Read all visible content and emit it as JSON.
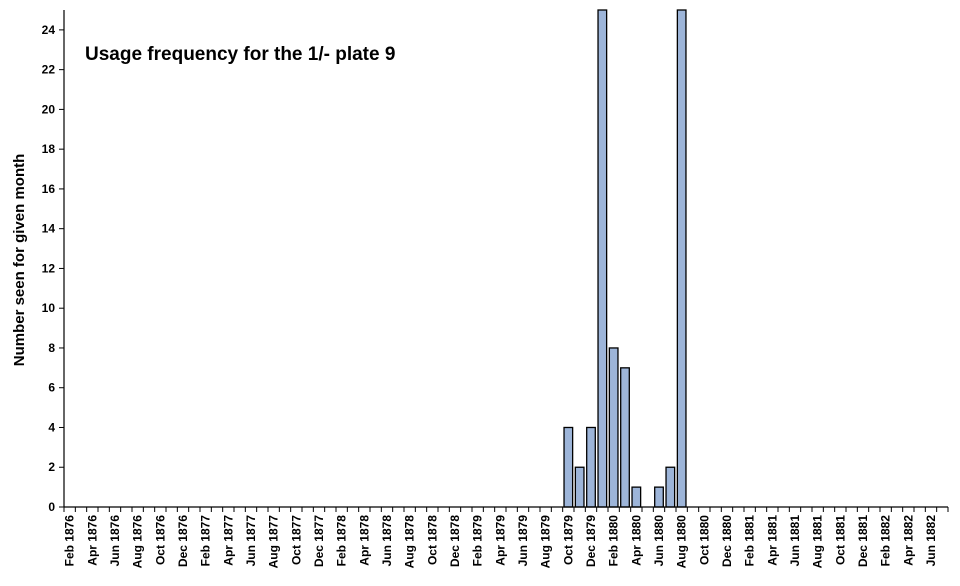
{
  "chart_data": {
    "type": "bar",
    "title": "Usage frequency for the 1/- plate 9",
    "xlabel": "",
    "ylabel": "Number seen for given month",
    "ylim": [
      0,
      25
    ],
    "yticks": [
      0,
      2,
      4,
      6,
      8,
      10,
      12,
      14,
      16,
      18,
      20,
      22,
      24
    ],
    "grid": false,
    "legend": "none",
    "bar_color": "#9db5d9",
    "x_tick_labels": [
      "Feb 1876",
      "Apr 1876",
      "Jun 1876",
      "Aug 1876",
      "Oct 1876",
      "Dec 1876",
      "Feb 1877",
      "Apr 1877",
      "Jun 1877",
      "Aug 1877",
      "Oct 1877",
      "Dec 1877",
      "Feb 1878",
      "Apr 1878",
      "Jun 1878",
      "Aug 1878",
      "Oct 1878",
      "Dec 1878",
      "Feb 1879",
      "Apr 1879",
      "Jun 1879",
      "Aug 1879",
      "Oct 1879",
      "Dec 1879",
      "Feb 1880",
      "Apr 1880",
      "Jun 1880",
      "Aug 1880",
      "Oct 1880",
      "Dec 1880",
      "Feb 1881",
      "Apr 1881",
      "Jun 1881",
      "Aug 1881",
      "Oct 1881",
      "Dec 1881",
      "Feb 1882",
      "Apr 1882",
      "Jun 1882"
    ],
    "categories": [
      "Feb 1876",
      "Mar 1876",
      "Apr 1876",
      "May 1876",
      "Jun 1876",
      "Jul 1876",
      "Aug 1876",
      "Sep 1876",
      "Oct 1876",
      "Nov 1876",
      "Dec 1876",
      "Jan 1877",
      "Feb 1877",
      "Mar 1877",
      "Apr 1877",
      "May 1877",
      "Jun 1877",
      "Jul 1877",
      "Aug 1877",
      "Sep 1877",
      "Oct 1877",
      "Nov 1877",
      "Dec 1877",
      "Jan 1878",
      "Feb 1878",
      "Mar 1878",
      "Apr 1878",
      "May 1878",
      "Jun 1878",
      "Jul 1878",
      "Aug 1878",
      "Sep 1878",
      "Oct 1878",
      "Nov 1878",
      "Dec 1878",
      "Jan 1879",
      "Feb 1879",
      "Mar 1879",
      "Apr 1879",
      "May 1879",
      "Jun 1879",
      "Jul 1879",
      "Aug 1879",
      "Sep 1879",
      "Oct 1879",
      "Nov 1879",
      "Dec 1879",
      "Jan 1880",
      "Feb 1880",
      "Mar 1880",
      "Apr 1880",
      "May 1880",
      "Jun 1880",
      "Jul 1880",
      "Aug 1880",
      "Sep 1880",
      "Oct 1880",
      "Nov 1880",
      "Dec 1880",
      "Jan 1881",
      "Feb 1881",
      "Mar 1881",
      "Apr 1881",
      "May 1881",
      "Jun 1881",
      "Jul 1881",
      "Aug 1881",
      "Sep 1881",
      "Oct 1881",
      "Nov 1881",
      "Dec 1881",
      "Jan 1882",
      "Feb 1882",
      "Mar 1882",
      "Apr 1882",
      "May 1882",
      "Jun 1882",
      "Jul 1882"
    ],
    "values": [
      0,
      0,
      0,
      0,
      0,
      0,
      0,
      0,
      0,
      0,
      0,
      0,
      0,
      0,
      0,
      0,
      0,
      0,
      0,
      0,
      0,
      0,
      0,
      0,
      0,
      0,
      0,
      0,
      0,
      0,
      0,
      0,
      0,
      0,
      0,
      0,
      0,
      0,
      0,
      0,
      0,
      0,
      0,
      0,
      4,
      2,
      4,
      25,
      8,
      7,
      1,
      0,
      1,
      2,
      25,
      0,
      0,
      0,
      0,
      0,
      0,
      0,
      0,
      0,
      0,
      0,
      0,
      0,
      0,
      0,
      0,
      0,
      0,
      0,
      0,
      0,
      0,
      0
    ]
  }
}
